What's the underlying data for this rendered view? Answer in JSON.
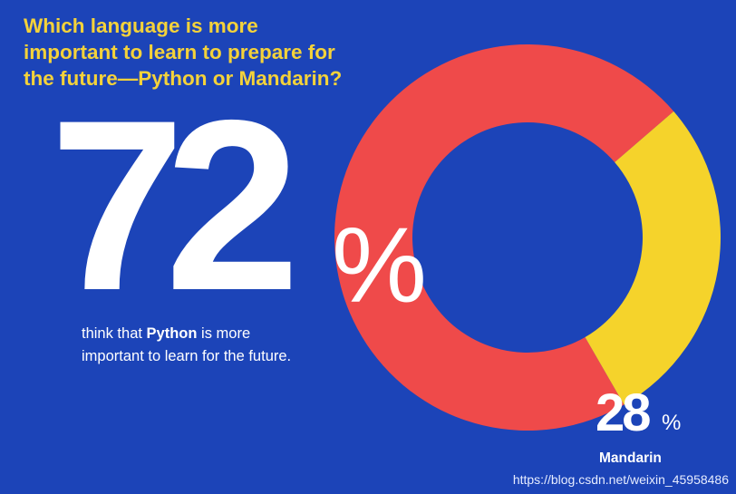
{
  "question": {
    "line1": "Which language is more",
    "line2": "important to learn to prepare for",
    "line3": "the future—Python or Mandarin?"
  },
  "main_stat": {
    "number": "72",
    "percent_sign": "%",
    "caption_prefix": "think that ",
    "caption_bold": "Python",
    "caption_suffix": " is more",
    "caption_line2": "important to learn for the future."
  },
  "secondary_stat": {
    "number": "28",
    "percent_sign": "%",
    "label": "Mandarin"
  },
  "watermark": "https://blog.csdn.net/weixin_45958486",
  "colors": {
    "background": "#1c44b8",
    "python": "#ef4a4a",
    "mandarin": "#f5d32b",
    "question_text": "#f4d23a"
  },
  "chart_data": {
    "type": "pie",
    "style": "donut",
    "categories": [
      "Python",
      "Mandarin"
    ],
    "values": [
      72,
      28
    ],
    "title": "Which language is more important to learn to prepare for the future—Python or Mandarin?",
    "legend": "none"
  }
}
